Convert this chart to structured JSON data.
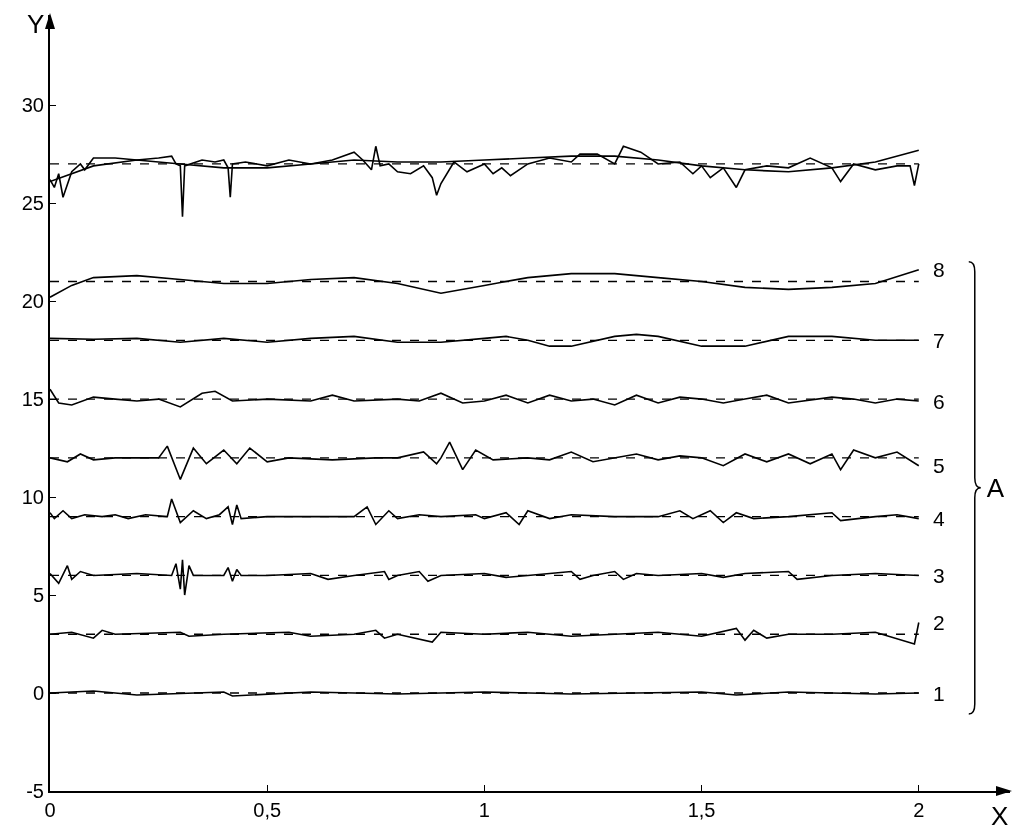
{
  "chart_data": {
    "type": "line",
    "xlabel": "X",
    "ylabel": "Y",
    "xlim": [
      0,
      2.21
    ],
    "ylim": [
      -5,
      34.6
    ],
    "xticks": [
      0,
      {
        "value": 0.5,
        "label": "0,5"
      },
      1,
      {
        "value": 1.5,
        "label": "1,5"
      },
      2
    ],
    "yticks": [
      -5,
      0,
      5,
      10,
      15,
      20,
      25,
      30
    ],
    "grid": false,
    "legend": false,
    "marker": "none",
    "line_style": "solid",
    "annotations": [
      "A"
    ],
    "ref_lines": [
      {
        "axis": "y",
        "value": 0,
        "line_style": "dashed",
        "color": "#000000"
      },
      {
        "axis": "y",
        "value": 3,
        "line_style": "dashed",
        "color": "#000000"
      },
      {
        "axis": "y",
        "value": 6,
        "line_style": "dashed",
        "color": "#000000"
      },
      {
        "axis": "y",
        "value": 9,
        "line_style": "dashed",
        "color": "#000000"
      },
      {
        "axis": "y",
        "value": 12,
        "line_style": "dashed",
        "color": "#000000"
      },
      {
        "axis": "y",
        "value": 15,
        "line_style": "dashed",
        "color": "#000000"
      },
      {
        "axis": "y",
        "value": 18,
        "line_style": "dashed",
        "color": "#000000"
      },
      {
        "axis": "y",
        "value": 21,
        "line_style": "dashed",
        "color": "#000000"
      },
      {
        "axis": "y",
        "value": 27,
        "line_style": "dashed",
        "color": "#000000"
      }
    ],
    "series": [
      {
        "color": "#000000",
        "x": [
          0,
          0.01,
          0.02,
          0.03,
          0.05,
          0.07,
          0.08,
          0.1,
          0.15,
          0.2,
          0.25,
          0.28,
          0.29,
          0.3,
          0.305,
          0.31,
          0.35,
          0.38,
          0.4,
          0.41,
          0.415,
          0.42,
          0.45,
          0.5,
          0.55,
          0.6,
          0.65,
          0.7,
          0.72,
          0.74,
          0.75,
          0.76,
          0.78,
          0.8,
          0.83,
          0.86,
          0.88,
          0.89,
          0.9,
          0.93,
          0.96,
          1.0,
          1.02,
          1.04,
          1.06,
          1.1,
          1.15,
          1.2,
          1.22,
          1.26,
          1.3,
          1.32,
          1.36,
          1.4,
          1.45,
          1.48,
          1.5,
          1.52,
          1.55,
          1.58,
          1.6,
          1.65,
          1.7,
          1.75,
          1.8,
          1.82,
          1.85,
          1.9,
          1.95,
          1.98,
          1.99,
          2.0
        ],
        "values": [
          26.2,
          25.8,
          26.5,
          25.3,
          26.6,
          27.0,
          26.7,
          27.3,
          27.3,
          27.2,
          27.3,
          27.4,
          27.0,
          26.9,
          24.3,
          26.9,
          27.2,
          27.1,
          27.2,
          26.8,
          25.3,
          27.0,
          27.1,
          26.9,
          27.2,
          27.0,
          27.2,
          27.6,
          27.2,
          26.7,
          27.9,
          26.9,
          27.0,
          26.6,
          26.5,
          26.9,
          26.3,
          25.4,
          26.0,
          27.1,
          26.6,
          27.0,
          26.5,
          26.8,
          26.4,
          27.0,
          27.3,
          27.1,
          27.5,
          27.5,
          27.0,
          27.9,
          27.6,
          27.0,
          27.1,
          26.5,
          26.9,
          26.3,
          26.8,
          25.8,
          26.7,
          26.9,
          26.8,
          27.3,
          26.8,
          26.1,
          27.0,
          26.7,
          26.9,
          26.9,
          25.9,
          27.0
        ]
      },
      {
        "color": "#000000",
        "x": [
          0,
          0.1,
          0.2,
          0.3,
          0.4,
          0.5,
          0.6,
          0.7,
          0.8,
          0.9,
          1.0,
          1.1,
          1.2,
          1.3,
          1.4,
          1.5,
          1.6,
          1.7,
          1.8,
          1.9,
          2.0
        ],
        "values": [
          26.1,
          26.9,
          27.2,
          27.0,
          26.8,
          26.8,
          27.0,
          27.2,
          27.1,
          27.1,
          27.2,
          27.3,
          27.4,
          27.4,
          27.2,
          26.9,
          26.7,
          26.6,
          26.8,
          27.1,
          27.7
        ]
      },
      {
        "name": "8",
        "color": "#000000",
        "x": [
          0,
          0.05,
          0.1,
          0.2,
          0.3,
          0.4,
          0.5,
          0.6,
          0.7,
          0.8,
          0.9,
          1.0,
          1.1,
          1.2,
          1.3,
          1.4,
          1.5,
          1.6,
          1.7,
          1.8,
          1.9,
          2.0
        ],
        "values": [
          20.2,
          20.8,
          21.2,
          21.3,
          21.1,
          20.9,
          20.9,
          21.1,
          21.2,
          20.9,
          20.4,
          20.8,
          21.2,
          21.4,
          21.4,
          21.2,
          21.0,
          20.7,
          20.6,
          20.7,
          20.9,
          21.6
        ]
      },
      {
        "name": "7",
        "color": "#000000",
        "x": [
          0,
          0.1,
          0.2,
          0.3,
          0.4,
          0.5,
          0.6,
          0.7,
          0.8,
          0.9,
          1.0,
          1.05,
          1.1,
          1.15,
          1.2,
          1.3,
          1.35,
          1.4,
          1.5,
          1.6,
          1.7,
          1.8,
          1.9,
          2.0
        ],
        "values": [
          18.1,
          18.05,
          18.1,
          17.9,
          18.1,
          17.9,
          18.1,
          18.2,
          17.9,
          17.9,
          18.1,
          18.2,
          18.0,
          17.7,
          17.7,
          18.2,
          18.3,
          18.2,
          17.7,
          17.7,
          18.2,
          18.2,
          18.0,
          18.0
        ]
      },
      {
        "name": "6",
        "color": "#000000",
        "x": [
          0,
          0.02,
          0.05,
          0.1,
          0.15,
          0.2,
          0.25,
          0.3,
          0.35,
          0.38,
          0.42,
          0.5,
          0.6,
          0.65,
          0.7,
          0.8,
          0.85,
          0.9,
          0.95,
          1.0,
          1.05,
          1.1,
          1.15,
          1.2,
          1.25,
          1.3,
          1.35,
          1.4,
          1.45,
          1.5,
          1.55,
          1.6,
          1.65,
          1.7,
          1.8,
          1.85,
          1.9,
          1.95,
          2.0
        ],
        "values": [
          15.5,
          14.8,
          14.7,
          15.1,
          15.0,
          14.9,
          15.0,
          14.6,
          15.3,
          15.4,
          14.9,
          15.0,
          14.9,
          15.2,
          14.9,
          15.0,
          14.9,
          15.3,
          14.8,
          14.9,
          15.2,
          14.8,
          15.2,
          14.9,
          15.0,
          14.7,
          15.2,
          14.8,
          15.1,
          15.0,
          14.8,
          15.0,
          15.2,
          14.8,
          15.1,
          15.0,
          14.8,
          15.0,
          14.9
        ]
      },
      {
        "name": "5",
        "color": "#000000",
        "x": [
          0,
          0.04,
          0.07,
          0.1,
          0.15,
          0.25,
          0.27,
          0.3,
          0.33,
          0.36,
          0.4,
          0.43,
          0.46,
          0.5,
          0.55,
          0.65,
          0.75,
          0.8,
          0.86,
          0.89,
          0.9,
          0.92,
          0.95,
          0.98,
          1.02,
          1.1,
          1.15,
          1.2,
          1.25,
          1.35,
          1.4,
          1.45,
          1.5,
          1.55,
          1.6,
          1.65,
          1.7,
          1.75,
          1.8,
          1.82,
          1.85,
          1.9,
          1.95,
          2.0
        ],
        "values": [
          12.0,
          11.8,
          12.2,
          11.9,
          12.0,
          12.0,
          12.6,
          10.9,
          12.5,
          11.7,
          12.4,
          11.7,
          12.5,
          11.8,
          12.0,
          11.9,
          12.0,
          12.0,
          12.3,
          11.7,
          12.0,
          12.8,
          11.4,
          12.4,
          11.9,
          12.0,
          11.9,
          12.3,
          11.8,
          12.2,
          11.9,
          12.1,
          12.0,
          11.6,
          12.2,
          11.8,
          12.2,
          11.7,
          12.2,
          11.4,
          12.4,
          12.0,
          12.3,
          11.6
        ]
      },
      {
        "name": "4",
        "color": "#000000",
        "x": [
          0,
          0.01,
          0.03,
          0.05,
          0.08,
          0.12,
          0.15,
          0.18,
          0.22,
          0.27,
          0.28,
          0.3,
          0.33,
          0.36,
          0.39,
          0.41,
          0.42,
          0.43,
          0.44,
          0.5,
          0.6,
          0.7,
          0.73,
          0.75,
          0.78,
          0.8,
          0.85,
          0.9,
          0.98,
          1.0,
          1.05,
          1.08,
          1.1,
          1.15,
          1.2,
          1.3,
          1.4,
          1.45,
          1.48,
          1.52,
          1.55,
          1.58,
          1.62,
          1.7,
          1.8,
          1.82,
          1.9,
          1.95,
          2.0
        ],
        "values": [
          9.2,
          8.9,
          9.3,
          8.9,
          9.1,
          9.0,
          9.1,
          8.9,
          9.1,
          9.0,
          9.9,
          8.7,
          9.3,
          8.9,
          9.1,
          9.5,
          8.6,
          9.6,
          8.9,
          9.0,
          9.0,
          9.0,
          9.5,
          8.6,
          9.3,
          8.9,
          9.1,
          9.0,
          9.1,
          8.9,
          9.2,
          8.6,
          9.3,
          8.9,
          9.1,
          9.0,
          9.0,
          9.3,
          8.9,
          9.3,
          8.7,
          9.2,
          8.9,
          9.0,
          9.2,
          8.8,
          9.0,
          9.1,
          8.9
        ]
      },
      {
        "name": "3",
        "color": "#000000",
        "x": [
          0,
          0.02,
          0.04,
          0.05,
          0.07,
          0.1,
          0.2,
          0.28,
          0.29,
          0.3,
          0.305,
          0.31,
          0.32,
          0.33,
          0.4,
          0.41,
          0.42,
          0.43,
          0.44,
          0.5,
          0.6,
          0.64,
          0.7,
          0.77,
          0.78,
          0.8,
          0.85,
          0.87,
          0.9,
          1.0,
          1.05,
          1.1,
          1.2,
          1.22,
          1.25,
          1.3,
          1.32,
          1.35,
          1.4,
          1.5,
          1.55,
          1.6,
          1.7,
          1.72,
          1.8,
          1.9,
          2.0
        ],
        "values": [
          6.1,
          5.6,
          6.5,
          5.8,
          6.2,
          6.0,
          6.1,
          6.0,
          6.6,
          5.3,
          6.8,
          5.0,
          6.5,
          6.0,
          6.0,
          6.4,
          5.7,
          6.3,
          6.0,
          6.0,
          6.1,
          5.8,
          6.0,
          6.2,
          5.8,
          6.0,
          6.2,
          5.7,
          6.0,
          6.1,
          5.9,
          6.0,
          6.2,
          5.8,
          6.0,
          6.2,
          5.8,
          6.1,
          6.0,
          6.1,
          5.9,
          6.1,
          6.2,
          5.8,
          6.0,
          6.1,
          6.0
        ]
      },
      {
        "name": "2",
        "color": "#000000",
        "x": [
          0,
          0.05,
          0.1,
          0.12,
          0.15,
          0.3,
          0.32,
          0.4,
          0.55,
          0.6,
          0.7,
          0.75,
          0.77,
          0.8,
          0.88,
          0.9,
          1.0,
          1.1,
          1.2,
          1.3,
          1.4,
          1.5,
          1.58,
          1.6,
          1.62,
          1.65,
          1.7,
          1.8,
          1.9,
          1.99,
          2.0
        ],
        "values": [
          3.0,
          3.1,
          2.8,
          3.2,
          3.0,
          3.1,
          2.9,
          3.0,
          3.1,
          2.9,
          3.0,
          3.2,
          2.8,
          3.0,
          2.6,
          3.1,
          3.0,
          3.1,
          2.9,
          3.0,
          3.1,
          2.9,
          3.3,
          2.7,
          3.2,
          2.8,
          3.0,
          3.0,
          3.1,
          2.5,
          3.6
        ]
      },
      {
        "name": "1",
        "color": "#000000",
        "x": [
          0,
          0.1,
          0.2,
          0.4,
          0.42,
          0.6,
          0.8,
          1.0,
          1.2,
          1.5,
          1.58,
          1.7,
          1.9,
          2.0
        ],
        "values": [
          0,
          0.1,
          -0.1,
          0.05,
          -0.15,
          0.05,
          -0.05,
          0.05,
          -0.05,
          0.05,
          -0.1,
          0.05,
          -0.05,
          0
        ]
      }
    ]
  }
}
